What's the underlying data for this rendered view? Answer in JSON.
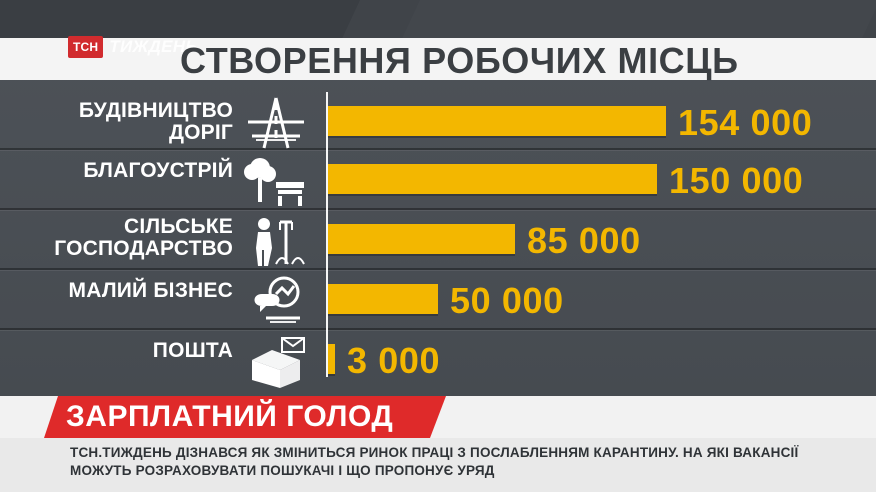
{
  "brand": {
    "logo_box": "ТСН",
    "logo_word": "ТИЖДЕНЬ"
  },
  "title": "СТВОРЕННЯ РОБОЧИХ МІСЦЬ",
  "chart_data": {
    "type": "bar",
    "orientation": "horizontal",
    "title": "СТВОРЕННЯ РОБОЧИХ МІСЦЬ",
    "categories": [
      "БУДІВНИЦТВО ДОРІГ",
      "БЛАГОУСТРІЙ",
      "СІЛЬСЬКЕ ГОСПОДАРСТВО",
      "МАЛИЙ БІЗНЕС",
      "ПОШТА"
    ],
    "values": [
      154000,
      150000,
      85000,
      50000,
      3000
    ],
    "data_labels": [
      "154 000",
      "150 000",
      "85 000",
      "50 000",
      "3 000"
    ],
    "xlabel": "",
    "ylabel": "",
    "grid": false,
    "bar_color": "#f3b700"
  },
  "rows": [
    {
      "label": "БУДІВНИЦТВО\nДОРІГ",
      "icon": "road-icon"
    },
    {
      "label": "БЛАГОУСТРІЙ",
      "icon": "tree-bench-icon"
    },
    {
      "label": "СІЛЬСЬКЕ\nГОСПОДАРСТВО",
      "icon": "farmer-icon"
    },
    {
      "label": "МАЛИЙ БІЗНЕС",
      "icon": "business-chat-icon"
    },
    {
      "label": "ПОШТА",
      "icon": "mail-box-icon"
    }
  ],
  "lower_third": {
    "title": "ЗАРПЛАТНИЙ ГОЛОД",
    "ticker": "ТСН.ТИЖДЕНЬ ДІЗНАВСЯ ЯК ЗМІНИТЬСЯ РИНОК ПРАЦІ З ПОСЛАБЛЕННЯМ КАРАНТИНУ. НА ЯКІ ВАКАНСІЇ\nМОЖУТЬ РОЗРАХОВУВАТИ ПОШУКАЧІ І ЩО ПРОПОНУЄ УРЯД"
  },
  "colors": {
    "background": "#4a4f55",
    "accent": "#f3b700",
    "brand_red": "#df2a2a"
  }
}
